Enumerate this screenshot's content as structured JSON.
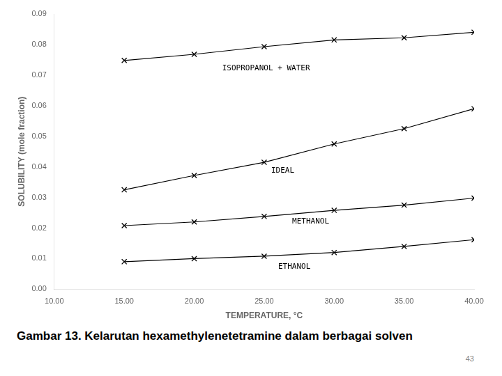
{
  "chart_data": {
    "type": "line",
    "xlabel": "TEMPERATURE, °C",
    "ylabel": "SOLUBILITY (mole fraction)",
    "x": [
      15,
      20,
      25,
      30,
      35,
      40
    ],
    "series": [
      {
        "name": "ISOPROPANOL + WATER",
        "color": "#000000",
        "marker": "x",
        "values": [
          0.0748,
          0.0768,
          0.0793,
          0.0815,
          0.0822,
          0.084
        ]
      },
      {
        "name": "IDEAL",
        "color": "#000000",
        "marker": "x",
        "values": [
          0.0325,
          0.0372,
          0.0415,
          0.0475,
          0.0525,
          0.059
        ]
      },
      {
        "name": "METHANOL",
        "color": "#000000",
        "marker": "x",
        "values": [
          0.0208,
          0.022,
          0.0238,
          0.0258,
          0.0275,
          0.0298
        ]
      },
      {
        "name": "ETHANOL",
        "color": "#000000",
        "marker": "x",
        "values": [
          0.009,
          0.01,
          0.0108,
          0.012,
          0.014,
          0.0162
        ]
      }
    ],
    "xlim": [
      10,
      40
    ],
    "ylim": [
      0,
      0.09
    ],
    "xticks": [
      {
        "value": 10,
        "label": "10.00"
      },
      {
        "value": 15,
        "label": "15.00"
      },
      {
        "value": 20,
        "label": "20.00"
      },
      {
        "value": 25,
        "label": "25.00"
      },
      {
        "value": 30,
        "label": "30.00"
      },
      {
        "value": 35,
        "label": "35.00"
      },
      {
        "value": 40,
        "label": "40.00"
      }
    ],
    "yticks": [
      {
        "value": 0,
        "label": "0.00"
      },
      {
        "value": 0.01,
        "label": "0.01"
      },
      {
        "value": 0.02,
        "label": "0.02"
      },
      {
        "value": 0.03,
        "label": "0.03"
      },
      {
        "value": 0.04,
        "label": "0.04"
      },
      {
        "value": 0.05,
        "label": "0.05"
      },
      {
        "value": 0.06,
        "label": "0.06"
      },
      {
        "value": 0.07,
        "label": "0.07"
      },
      {
        "value": 0.08,
        "label": "0.08"
      },
      {
        "value": 0.09,
        "label": "0.09"
      }
    ],
    "annotations": [
      {
        "text": "ISOPROPANOL + WATER",
        "x": 22,
        "y": 0.071
      },
      {
        "text": "IDEAL",
        "x": 25.5,
        "y": 0.0375
      },
      {
        "text": "METHANOL",
        "x": 27,
        "y": 0.0208
      },
      {
        "text": "ETHANOL",
        "x": 26,
        "y": 0.006
      },
      {
        "text": "Gambar 13. Kelarutan hexamethylenetetramine dalam berbagai solven"
      },
      {
        "text": "43"
      }
    ],
    "grid": false
  }
}
